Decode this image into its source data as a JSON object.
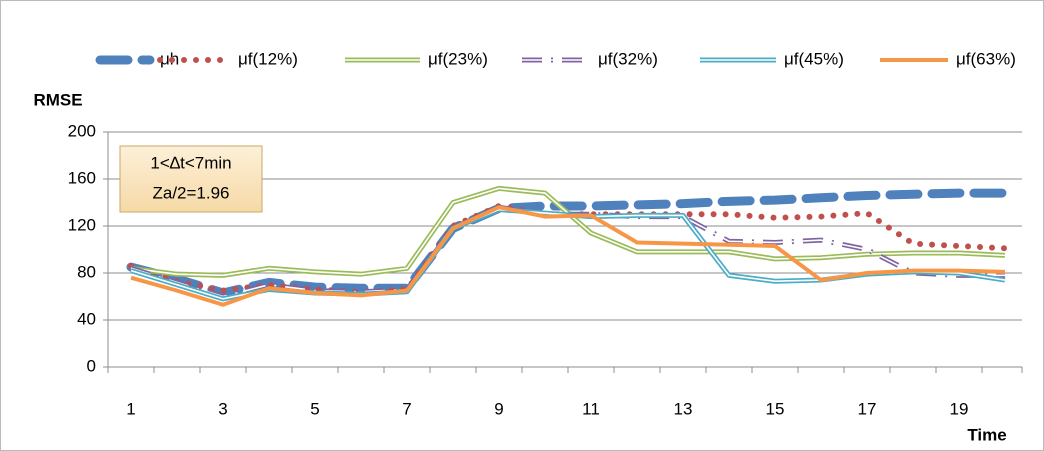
{
  "chart_data": {
    "type": "line",
    "y_label": "RMSE",
    "x_label": "Time",
    "annotation": [
      "1<∆t<7min",
      "Za/2=1.96"
    ],
    "categories": [
      1,
      null,
      3,
      null,
      5,
      null,
      7,
      null,
      9,
      null,
      11,
      null,
      13,
      null,
      15,
      null,
      17,
      null,
      19,
      null
    ],
    "ylim": [
      0,
      200
    ],
    "yticks": [
      0,
      40,
      80,
      120,
      160,
      200
    ],
    "grid": true,
    "legend": "top",
    "series": [
      {
        "name": "μh",
        "color": "#4f81bd",
        "style": "dashed",
        "values": [
          85,
          75,
          63,
          72,
          68,
          67,
          67,
          118,
          135,
          137,
          137,
          138,
          139,
          141,
          142,
          144,
          146,
          147,
          148,
          148
        ]
      },
      {
        "name": "μf(12%)",
        "color": "#c0504d",
        "style": "dotted",
        "values": [
          86,
          73,
          65,
          70,
          66,
          64,
          66,
          120,
          137,
          130,
          130,
          130,
          130,
          130,
          127,
          128,
          131,
          105,
          103,
          101
        ]
      },
      {
        "name": "μf(23%)",
        "color": "#9bbb59",
        "style": "double",
        "values": [
          84,
          79,
          78,
          84,
          81,
          79,
          84,
          140,
          152,
          148,
          114,
          98,
          98,
          98,
          92,
          93,
          96,
          97,
          97,
          95
        ]
      },
      {
        "name": "μf(32%)",
        "color": "#8064a2",
        "style": "dashdot",
        "values": [
          84,
          72,
          60,
          70,
          65,
          64,
          66,
          118,
          136,
          130,
          130,
          128,
          128,
          107,
          106,
          108,
          100,
          80,
          78,
          78
        ]
      },
      {
        "name": "μf(45%)",
        "color": "#4bacc6",
        "style": "double",
        "values": [
          82,
          70,
          58,
          66,
          63,
          62,
          64,
          118,
          134,
          131,
          128,
          129,
          129,
          78,
          73,
          74,
          79,
          81,
          80,
          74
        ]
      },
      {
        "name": "μf(63%)",
        "color": "#f79646",
        "style": "solid",
        "values": [
          76,
          65,
          53,
          67,
          63,
          61,
          65,
          118,
          136,
          128,
          129,
          106,
          105,
          104,
          103,
          74,
          80,
          82,
          82,
          81
        ]
      }
    ]
  }
}
